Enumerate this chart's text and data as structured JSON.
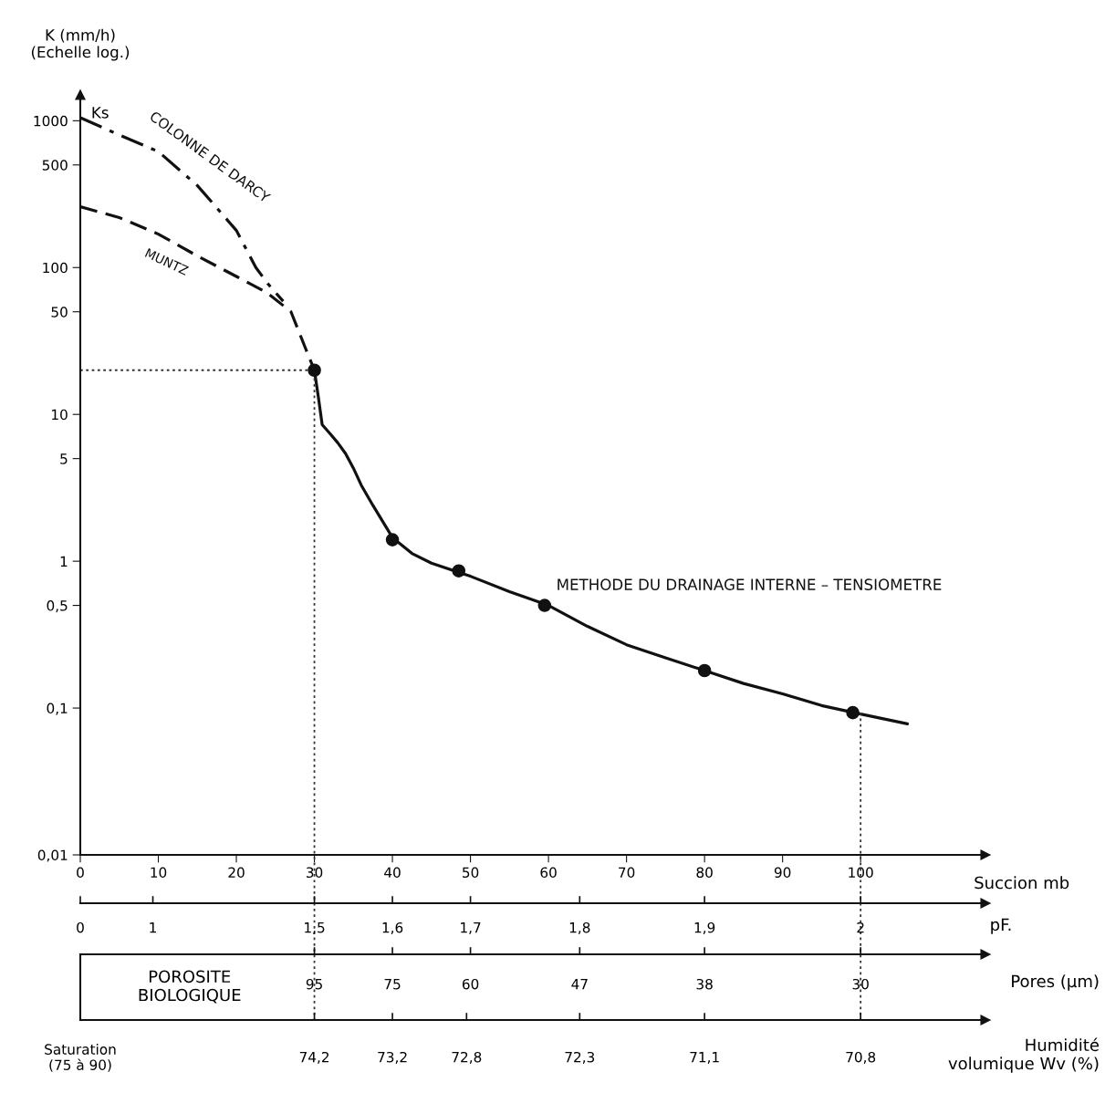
{
  "chart_data": {
    "type": "line",
    "ylabel": "K (mm/h)\n(Echelle log.)",
    "xlabel": "Succion mb",
    "annotations": [
      "Ks",
      "POROSITE\nBIOLOGIQUE",
      "pF.",
      "0",
      "1",
      "1,5",
      "1,6",
      "1,7",
      "1,8",
      "1,9",
      "2",
      "Pores (µm)",
      "95",
      "75",
      "60",
      "47",
      "38",
      "30",
      "Humidité\nvolumique Wv (%)",
      "Saturation\n(75 à 90)",
      "74,2",
      "73,2",
      "72,8",
      "72,3",
      "71,1",
      "70,8"
    ],
    "log": "y",
    "xlim": [
      0,
      116
    ],
    "xticks": [
      0,
      10,
      20,
      30,
      40,
      50,
      60,
      70,
      80,
      90,
      100
    ],
    "ylim": [
      0.01,
      1500
    ],
    "yticks": [
      {
        "value": 0.01,
        "label": "0,01"
      },
      {
        "value": 0.1,
        "label": "0,1"
      },
      {
        "value": 0.5,
        "label": "0,5"
      },
      1,
      5,
      10,
      50,
      100,
      500,
      1000
    ],
    "grid": false,
    "legend": false,
    "series": [
      {
        "name": "METHODE DU DRAINAGE INTERNE – TENSIOMETRE",
        "color": "#111111",
        "line_style": "solid",
        "marker": "none",
        "x": [
          30,
          30.5,
          31,
          32,
          33,
          34,
          35,
          36,
          37.5,
          40,
          42.5,
          45,
          50,
          55,
          60,
          65,
          70,
          75,
          80,
          85,
          90,
          95,
          100,
          106
        ],
        "values": [
          20,
          13.2,
          8.5,
          7.4,
          6.4,
          5.4,
          4.3,
          3.3,
          2.4,
          1.45,
          1.13,
          0.97,
          0.79,
          0.62,
          0.5,
          0.36,
          0.27,
          0.22,
          0.18,
          0.147,
          0.125,
          0.104,
          0.091,
          0.078
        ]
      },
      {
        "name": "COLONNE DE DARCY",
        "color": "#111111",
        "line_style": "dashdot",
        "marker": "none",
        "x": [
          0,
          5,
          10,
          15,
          20,
          22.5,
          24,
          26
        ],
        "values": [
          1050,
          800,
          617,
          362,
          179,
          100,
          78,
          59
        ]
      },
      {
        "name": "MUNTZ",
        "color": "#111111",
        "line_style": "dashed",
        "marker": "none",
        "x": [
          0,
          5,
          10,
          15,
          20,
          24,
          27,
          29,
          30
        ],
        "values": [
          260,
          219,
          169,
          120,
          87,
          67,
          50,
          27,
          20
        ]
      },
      {
        "type": "scatter",
        "color": "#111111",
        "marker": "circle",
        "x": [
          30,
          40,
          48.5,
          59.5,
          80,
          99
        ],
        "values": [
          20,
          1.4,
          0.86,
          0.5,
          0.18,
          0.093
        ]
      },
      {
        "color": "#333333",
        "line_style": "dotted",
        "marker": "none",
        "x": [
          0,
          30,
          30
        ],
        "values": [
          20,
          20,
          0.01
        ]
      },
      {
        "color": "#333333",
        "line_style": "dotted",
        "marker": "none",
        "x": [
          100,
          100
        ],
        "values": [
          0.093,
          0.01
        ]
      }
    ]
  }
}
